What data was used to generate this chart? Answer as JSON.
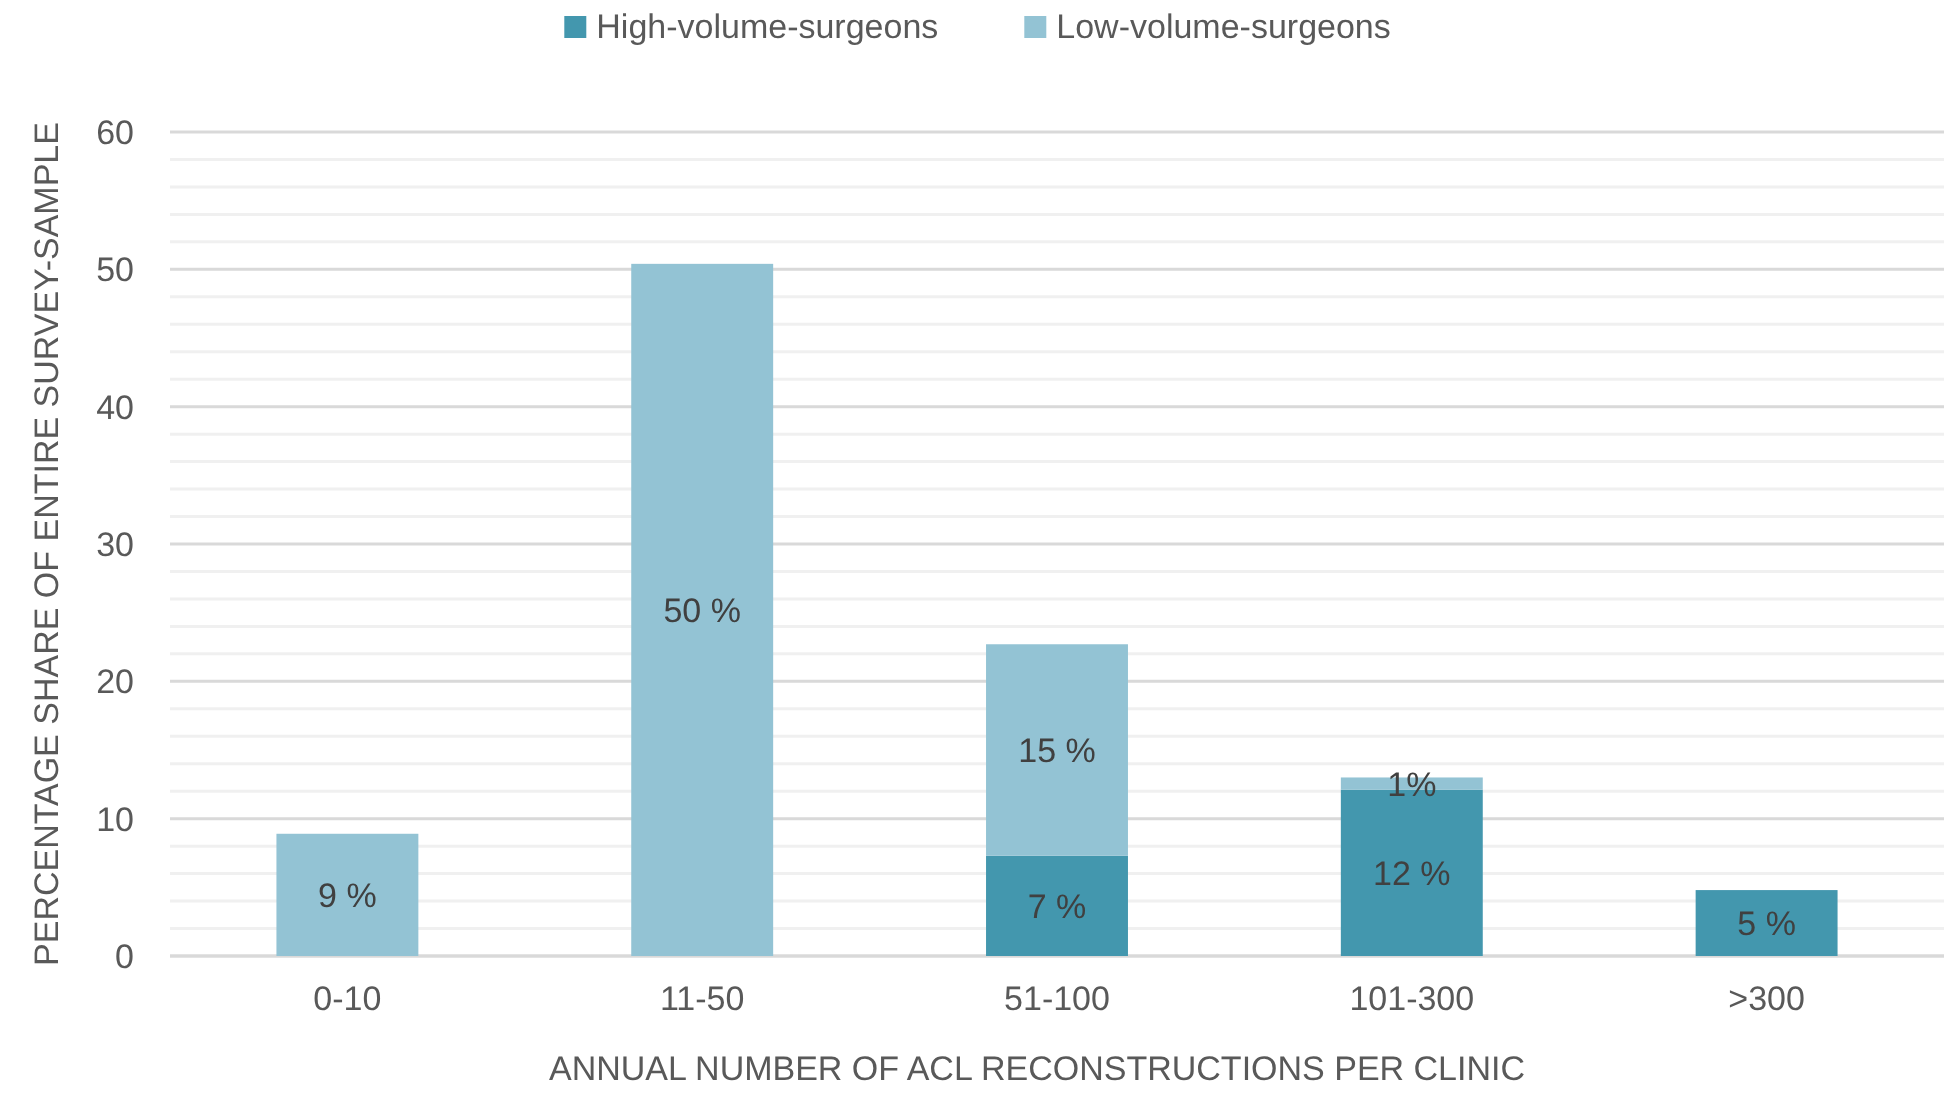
{
  "chart_data": {
    "type": "bar",
    "stacked": true,
    "xlabel": "ANNUAL NUMBER OF ACL RECONSTRUCTIONS PER CLINIC",
    "ylabel": "PERCENTAGE SHARE OF ENTIRE SURVEY-SAMPLE",
    "categories": [
      "0-10",
      "11-50",
      "51-100",
      "101-300",
      ">300"
    ],
    "series": [
      {
        "name": "High-volume-surgeons",
        "color": "#4397ae",
        "values": [
          0,
          0,
          7.3,
          12.1,
          4.8
        ],
        "value_labels": [
          null,
          null,
          "7 %",
          "12 %",
          "5 %"
        ]
      },
      {
        "name": "Low-volume-surgeons",
        "color": "#93c3d4",
        "values": [
          8.9,
          50.4,
          15.4,
          0.9,
          0
        ],
        "value_labels": [
          "9 %",
          "50 %",
          "15 %",
          "1%",
          null
        ]
      }
    ],
    "ylim": [
      0,
      60
    ],
    "yticks": [
      0,
      {
        "value": 2,
        "label": null
      },
      {
        "value": 4,
        "label": null
      },
      {
        "value": 6,
        "label": null
      },
      {
        "value": 8,
        "label": null
      },
      10,
      {
        "value": 12,
        "label": null
      },
      {
        "value": 14,
        "label": null
      },
      {
        "value": 16,
        "label": null
      },
      {
        "value": 18,
        "label": null
      },
      20,
      {
        "value": 22,
        "label": null
      },
      {
        "value": 24,
        "label": null
      },
      {
        "value": 26,
        "label": null
      },
      {
        "value": 28,
        "label": null
      },
      30,
      {
        "value": 32,
        "label": null
      },
      {
        "value": 34,
        "label": null
      },
      {
        "value": 36,
        "label": null
      },
      {
        "value": 38,
        "label": null
      },
      40,
      {
        "value": 42,
        "label": null
      },
      {
        "value": 44,
        "label": null
      },
      {
        "value": 46,
        "label": null
      },
      {
        "value": 48,
        "label": null
      },
      50,
      {
        "value": 52,
        "label": null
      },
      {
        "value": 54,
        "label": null
      },
      {
        "value": 56,
        "label": null
      },
      {
        "value": 58,
        "label": null
      },
      60
    ],
    "grid": "y",
    "legend": "top"
  }
}
